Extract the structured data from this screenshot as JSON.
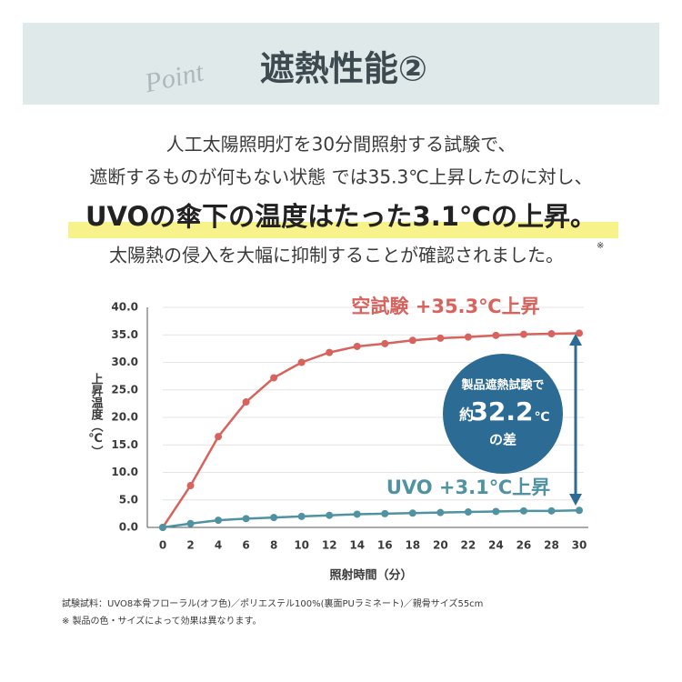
{
  "header": {
    "script": "Point",
    "title": "遮熱性能②"
  },
  "body": {
    "lines": [
      "人工太陽照明灯を30分間照射する試験で、",
      "遮断するものが何もない状態 では35.3℃上昇したのに対し、",
      "UVOの傘下の温度はたった3.1℃の上昇。",
      "太陽熱の侵入を大幅に抑制することが確認されました。"
    ],
    "mark": "※"
  },
  "chart_data": {
    "type": "line",
    "x_label": "照射時間（分）",
    "y_label": "上昇温度（℃）",
    "x": [
      0,
      2,
      4,
      6,
      8,
      10,
      12,
      14,
      16,
      18,
      20,
      22,
      24,
      26,
      28,
      30
    ],
    "series": [
      {
        "name": "空試験 +35.3℃上昇",
        "color": "#d8625c",
        "values": [
          0,
          7.6,
          16.5,
          22.8,
          27.2,
          30.0,
          31.8,
          32.9,
          33.4,
          34.0,
          34.4,
          34.6,
          34.9,
          35.1,
          35.2,
          35.3
        ]
      },
      {
        "name": "UVO +3.1℃上昇",
        "color": "#4f93a3",
        "values": [
          0,
          0.7,
          1.3,
          1.6,
          1.8,
          2.0,
          2.2,
          2.4,
          2.5,
          2.6,
          2.7,
          2.8,
          2.9,
          3.0,
          3.0,
          3.1
        ]
      }
    ],
    "xlim": [
      0,
      30
    ],
    "xticks": [
      0,
      2,
      4,
      6,
      8,
      10,
      12,
      14,
      16,
      18,
      20,
      22,
      24,
      26,
      28,
      30
    ],
    "ylim": [
      0,
      40
    ],
    "yticks": [
      {
        "value": 0,
        "label": "0.0"
      },
      {
        "value": 5,
        "label": "5.0"
      },
      {
        "value": 10,
        "label": "10.0"
      },
      {
        "value": 15,
        "label": "15.0"
      },
      {
        "value": 20,
        "label": "20.0"
      },
      {
        "value": 25,
        "label": "25.0"
      },
      {
        "value": 30,
        "label": "30.0"
      },
      {
        "value": 35,
        "label": "35.0"
      },
      {
        "value": 40,
        "label": "40.0"
      }
    ],
    "grid": true,
    "callout": {
      "line1": "製品遮熱試験で",
      "prefix": "約",
      "number": "32.2",
      "unit": "℃",
      "line3": "の差",
      "color": "#2c6b94"
    }
  },
  "footnotes": [
    "試験試料：UVO8本骨フローラル(オフ色)／ポリエステル100%(裏面PUラミネート)／親骨サイズ55cm",
    "※ 製品の色・サイズによって効果は異なります。"
  ]
}
